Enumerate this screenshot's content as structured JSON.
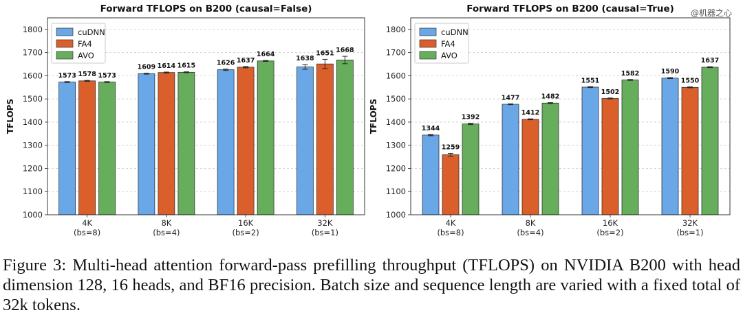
{
  "chart_data": [
    {
      "type": "bar",
      "title": "Forward TFLOPS on B200 (causal=False)",
      "xlabel": "",
      "ylabel": "TFLOPS",
      "ylim": [
        1000,
        1850
      ],
      "yticks": [
        1000,
        1100,
        1200,
        1300,
        1400,
        1500,
        1600,
        1700,
        1800
      ],
      "grid": "horizontal dashed",
      "legend_position": "top-left",
      "categories": [
        [
          "4K",
          "(bs=8)"
        ],
        [
          "8K",
          "(bs=4)"
        ],
        [
          "16K",
          "(bs=2)"
        ],
        [
          "32K",
          "(bs=1)"
        ]
      ],
      "series": [
        {
          "name": "cuDNN",
          "color": "#6aa7e6",
          "values": [
            1573,
            1609,
            1626,
            1638
          ],
          "errors": [
            2,
            2,
            3,
            10
          ]
        },
        {
          "name": "FA4",
          "color": "#db5f2b",
          "values": [
            1578,
            1614,
            1637,
            1651
          ],
          "errors": [
            2,
            2,
            3,
            20
          ]
        },
        {
          "name": "AVO",
          "color": "#66ad5c",
          "values": [
            1573,
            1615,
            1664,
            1668
          ],
          "errors": [
            2,
            2,
            2,
            16
          ]
        }
      ]
    },
    {
      "type": "bar",
      "title": "Forward TFLOPS on B200 (causal=True)",
      "xlabel": "",
      "ylabel": "TFLOPS",
      "ylim": [
        1000,
        1850
      ],
      "yticks": [
        1000,
        1100,
        1200,
        1300,
        1400,
        1500,
        1600,
        1700,
        1800
      ],
      "grid": "horizontal dashed",
      "legend_position": "top-left",
      "categories": [
        [
          "4K",
          "(bs=8)"
        ],
        [
          "8K",
          "(bs=4)"
        ],
        [
          "16K",
          "(bs=2)"
        ],
        [
          "32K",
          "(bs=1)"
        ]
      ],
      "series": [
        {
          "name": "cuDNN",
          "color": "#6aa7e6",
          "values": [
            1344,
            1477,
            1551,
            1590
          ],
          "errors": [
            3,
            2,
            2,
            2
          ]
        },
        {
          "name": "FA4",
          "color": "#db5f2b",
          "values": [
            1259,
            1412,
            1502,
            1550
          ],
          "errors": [
            6,
            2,
            2,
            2
          ]
        },
        {
          "name": "AVO",
          "color": "#66ad5c",
          "values": [
            1392,
            1482,
            1582,
            1637
          ],
          "errors": [
            3,
            2,
            2,
            2
          ]
        }
      ]
    }
  ],
  "caption": "Figure 3: Multi-head attention forward-pass prefilling throughput (TFLOPS) on NVIDIA B200 with head dimension 128, 16 heads, and BF16 precision. Batch size and sequence length are varied with a fixed total of 32k tokens.",
  "watermark": "@机器之心"
}
